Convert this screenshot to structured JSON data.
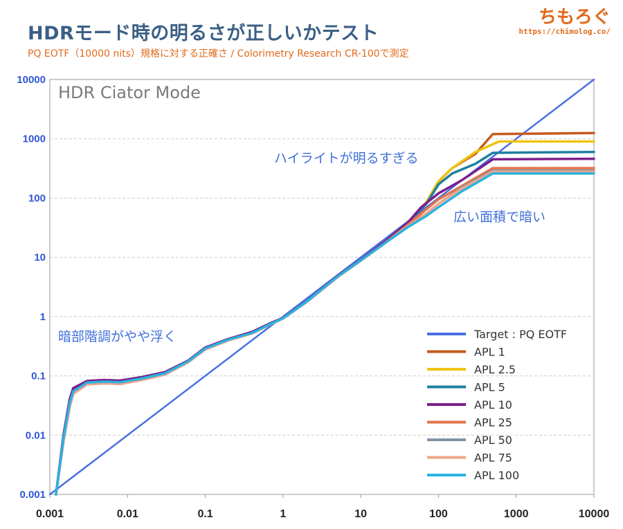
{
  "header": {
    "title": "HDRモード時の明るさが正しいかテスト",
    "subtitle": "PQ EOTF（10000 nits）規格に対する正確さ / Colorimetry Research CR-100で測定",
    "logo": "ちもろぐ",
    "logo_url": "https://chimolog.co/"
  },
  "colors": {
    "target": "#4a6fe3",
    "apl1": "#c55a1e",
    "apl2_5": "#f0c30e",
    "apl5": "#1f7fa0",
    "apl10": "#7a1f8c",
    "apl25": "#e2744a",
    "apl50": "#7f95a8",
    "apl75": "#f0a58a",
    "apl100": "#2ab3e0",
    "grid": "#cccccc",
    "axis_text_y": "#2f55d4"
  },
  "chart_data": {
    "type": "line",
    "title": "HDR Ciator Mode",
    "xscale": "log",
    "yscale": "log",
    "xlim": [
      0.001,
      10000
    ],
    "ylim": [
      0.001,
      10000
    ],
    "x_ticks": [
      "0.001",
      "0.01",
      "0.1",
      "1",
      "10",
      "100",
      "1000",
      "10000"
    ],
    "y_ticks": [
      "0.001",
      "0.01",
      "0.1",
      "1",
      "10",
      "100",
      "1000",
      "10000"
    ],
    "grid": true,
    "legend_position": "bottom-right",
    "annotations": [
      "ハイライトが明るすぎる",
      "広い面積で暗い",
      "暗部階調がやや浮く"
    ],
    "series": [
      {
        "name": "Target : PQ EOTF",
        "color_key": "target",
        "points": [
          [
            0.001,
            0.001
          ],
          [
            10000,
            10000
          ]
        ]
      },
      {
        "name": "APL 1",
        "color_key": "apl1",
        "points": [
          [
            0.0012,
            0.001
          ],
          [
            0.0015,
            0.01
          ],
          [
            0.0018,
            0.04
          ],
          [
            0.002,
            0.062
          ],
          [
            0.003,
            0.082
          ],
          [
            0.005,
            0.085
          ],
          [
            0.008,
            0.083
          ],
          [
            0.015,
            0.095
          ],
          [
            0.03,
            0.115
          ],
          [
            0.06,
            0.18
          ],
          [
            0.1,
            0.3
          ],
          [
            0.2,
            0.42
          ],
          [
            0.4,
            0.55
          ],
          [
            0.7,
            0.78
          ],
          [
            1,
            0.95
          ],
          [
            2,
            1.8
          ],
          [
            5,
            4.8
          ],
          [
            10,
            9
          ],
          [
            20,
            18
          ],
          [
            40,
            38
          ],
          [
            70,
            85
          ],
          [
            100,
            190
          ],
          [
            150,
            320
          ],
          [
            300,
            560
          ],
          [
            500,
            1200
          ],
          [
            10000,
            1250
          ]
        ]
      },
      {
        "name": "APL 2.5",
        "color_key": "apl2_5",
        "points": [
          [
            0.0012,
            0.001
          ],
          [
            0.0015,
            0.01
          ],
          [
            0.0018,
            0.04
          ],
          [
            0.002,
            0.062
          ],
          [
            0.003,
            0.082
          ],
          [
            0.005,
            0.085
          ],
          [
            0.008,
            0.083
          ],
          [
            0.015,
            0.095
          ],
          [
            0.03,
            0.115
          ],
          [
            0.06,
            0.18
          ],
          [
            0.1,
            0.3
          ],
          [
            0.2,
            0.42
          ],
          [
            0.4,
            0.55
          ],
          [
            0.7,
            0.78
          ],
          [
            1,
            0.95
          ],
          [
            2,
            1.8
          ],
          [
            5,
            4.8
          ],
          [
            10,
            9
          ],
          [
            20,
            18
          ],
          [
            40,
            38
          ],
          [
            70,
            85
          ],
          [
            100,
            190
          ],
          [
            150,
            320
          ],
          [
            300,
            600
          ],
          [
            600,
            900
          ],
          [
            10000,
            900
          ]
        ]
      },
      {
        "name": "APL 5",
        "color_key": "apl5",
        "points": [
          [
            0.0012,
            0.001
          ],
          [
            0.0015,
            0.01
          ],
          [
            0.0018,
            0.04
          ],
          [
            0.002,
            0.062
          ],
          [
            0.003,
            0.082
          ],
          [
            0.005,
            0.085
          ],
          [
            0.008,
            0.083
          ],
          [
            0.015,
            0.095
          ],
          [
            0.03,
            0.115
          ],
          [
            0.06,
            0.18
          ],
          [
            0.1,
            0.3
          ],
          [
            0.2,
            0.42
          ],
          [
            0.4,
            0.55
          ],
          [
            0.7,
            0.78
          ],
          [
            1,
            0.95
          ],
          [
            2,
            1.8
          ],
          [
            5,
            4.8
          ],
          [
            10,
            9
          ],
          [
            20,
            18
          ],
          [
            40,
            38
          ],
          [
            70,
            80
          ],
          [
            100,
            170
          ],
          [
            150,
            260
          ],
          [
            300,
            380
          ],
          [
            500,
            580
          ],
          [
            10000,
            600
          ]
        ]
      },
      {
        "name": "APL 10",
        "color_key": "apl10",
        "points": [
          [
            0.0012,
            0.001
          ],
          [
            0.0015,
            0.01
          ],
          [
            0.0018,
            0.04
          ],
          [
            0.002,
            0.062
          ],
          [
            0.003,
            0.082
          ],
          [
            0.005,
            0.085
          ],
          [
            0.008,
            0.083
          ],
          [
            0.015,
            0.095
          ],
          [
            0.03,
            0.115
          ],
          [
            0.06,
            0.18
          ],
          [
            0.1,
            0.3
          ],
          [
            0.2,
            0.42
          ],
          [
            0.4,
            0.55
          ],
          [
            0.7,
            0.78
          ],
          [
            1,
            0.95
          ],
          [
            2,
            1.8
          ],
          [
            5,
            4.8
          ],
          [
            10,
            9
          ],
          [
            20,
            18
          ],
          [
            40,
            38
          ],
          [
            60,
            70
          ],
          [
            100,
            120
          ],
          [
            200,
            200
          ],
          [
            500,
            450
          ],
          [
            10000,
            460
          ]
        ]
      },
      {
        "name": "APL 25",
        "color_key": "apl25",
        "points": [
          [
            0.0012,
            0.001
          ],
          [
            0.0015,
            0.008
          ],
          [
            0.0018,
            0.03
          ],
          [
            0.002,
            0.05
          ],
          [
            0.003,
            0.072
          ],
          [
            0.005,
            0.075
          ],
          [
            0.008,
            0.073
          ],
          [
            0.015,
            0.085
          ],
          [
            0.03,
            0.105
          ],
          [
            0.06,
            0.17
          ],
          [
            0.1,
            0.28
          ],
          [
            0.2,
            0.4
          ],
          [
            0.4,
            0.52
          ],
          [
            0.7,
            0.75
          ],
          [
            1,
            0.93
          ],
          [
            2,
            1.75
          ],
          [
            5,
            4.6
          ],
          [
            10,
            8.8
          ],
          [
            20,
            17
          ],
          [
            40,
            35
          ],
          [
            70,
            65
          ],
          [
            100,
            95
          ],
          [
            200,
            160
          ],
          [
            500,
            320
          ],
          [
            10000,
            320
          ]
        ]
      },
      {
        "name": "APL 50",
        "color_key": "apl50",
        "points": [
          [
            0.0012,
            0.001
          ],
          [
            0.0015,
            0.008
          ],
          [
            0.0018,
            0.03
          ],
          [
            0.002,
            0.05
          ],
          [
            0.003,
            0.072
          ],
          [
            0.005,
            0.075
          ],
          [
            0.008,
            0.073
          ],
          [
            0.015,
            0.085
          ],
          [
            0.03,
            0.105
          ],
          [
            0.06,
            0.17
          ],
          [
            0.1,
            0.28
          ],
          [
            0.2,
            0.4
          ],
          [
            0.4,
            0.52
          ],
          [
            0.7,
            0.75
          ],
          [
            1,
            0.93
          ],
          [
            2,
            1.75
          ],
          [
            5,
            4.6
          ],
          [
            10,
            8.8
          ],
          [
            20,
            17
          ],
          [
            40,
            33
          ],
          [
            70,
            55
          ],
          [
            100,
            80
          ],
          [
            200,
            150
          ],
          [
            500,
            290
          ],
          [
            10000,
            290
          ]
        ]
      },
      {
        "name": "APL 75",
        "color_key": "apl75",
        "points": [
          [
            0.0012,
            0.001
          ],
          [
            0.0015,
            0.008
          ],
          [
            0.0018,
            0.03
          ],
          [
            0.002,
            0.05
          ],
          [
            0.003,
            0.072
          ],
          [
            0.005,
            0.075
          ],
          [
            0.008,
            0.073
          ],
          [
            0.015,
            0.085
          ],
          [
            0.03,
            0.105
          ],
          [
            0.06,
            0.17
          ],
          [
            0.1,
            0.28
          ],
          [
            0.2,
            0.4
          ],
          [
            0.4,
            0.52
          ],
          [
            0.7,
            0.75
          ],
          [
            1,
            0.93
          ],
          [
            2,
            1.75
          ],
          [
            5,
            4.6
          ],
          [
            10,
            8.8
          ],
          [
            20,
            17
          ],
          [
            40,
            33
          ],
          [
            70,
            55
          ],
          [
            100,
            80
          ],
          [
            200,
            145
          ],
          [
            500,
            280
          ],
          [
            10000,
            280
          ]
        ]
      },
      {
        "name": "APL 100",
        "color_key": "apl100",
        "points": [
          [
            0.0012,
            0.001
          ],
          [
            0.0015,
            0.009
          ],
          [
            0.0018,
            0.035
          ],
          [
            0.002,
            0.055
          ],
          [
            0.003,
            0.077
          ],
          [
            0.005,
            0.08
          ],
          [
            0.008,
            0.078
          ],
          [
            0.015,
            0.09
          ],
          [
            0.03,
            0.11
          ],
          [
            0.06,
            0.175
          ],
          [
            0.1,
            0.29
          ],
          [
            0.2,
            0.41
          ],
          [
            0.4,
            0.53
          ],
          [
            0.7,
            0.76
          ],
          [
            1,
            0.94
          ],
          [
            2,
            1.78
          ],
          [
            5,
            4.7
          ],
          [
            10,
            8.9
          ],
          [
            20,
            17
          ],
          [
            40,
            32
          ],
          [
            70,
            50
          ],
          [
            100,
            70
          ],
          [
            200,
            130
          ],
          [
            500,
            260
          ],
          [
            10000,
            260
          ]
        ]
      }
    ]
  }
}
